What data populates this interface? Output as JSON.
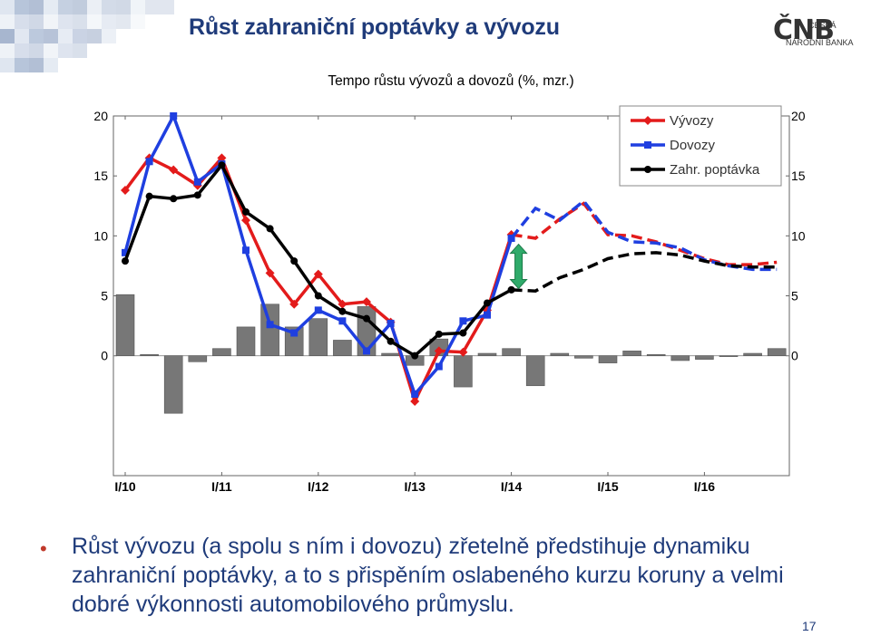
{
  "header": {
    "title": "Růst zahraniční poptávky a vývozu",
    "logo": {
      "brand": "ČNB",
      "line1": "ČESKÁ",
      "line2": "NÁRODNÍ BANKA"
    }
  },
  "colors": {
    "title": "#1f3b7a",
    "vyvozy": "#e31b1b",
    "dovozy": "#1f3fe0",
    "poptavka": "#000000",
    "bars": "#777777",
    "arrow": "#2faa6a",
    "bullet": "#c0392b"
  },
  "chart_data": {
    "type": "line",
    "title": "Tempo růstu vývozů a dovozů (%, mzr.)",
    "ylim": [
      -10,
      20
    ],
    "yticks": [
      0,
      5,
      10,
      15,
      20
    ],
    "x_tick_labels": [
      "I/10",
      "I/11",
      "I/12",
      "I/13",
      "I/14",
      "I/15",
      "I/16"
    ],
    "x_tick_positions": [
      0,
      4,
      8,
      12,
      16,
      20,
      24
    ],
    "legend_position": "top-right",
    "series": [
      {
        "name": "Vývozy",
        "color": "#e31b1b",
        "marker": "diamond",
        "values": [
          13.8,
          16.5,
          15.5,
          14.2,
          16.5,
          11.3,
          6.9,
          4.3,
          6.8,
          4.3,
          4.5,
          2.8,
          -3.8,
          0.4,
          0.3,
          3.8,
          10.1
        ],
        "forecast": [
          10.1,
          9.8,
          11.4,
          12.7,
          10.1,
          10.0,
          9.5,
          8.8,
          8.1,
          7.6,
          7.6,
          7.8
        ],
        "forecast_start": 16
      },
      {
        "name": "Dovozy",
        "color": "#1f3fe0",
        "marker": "square",
        "values": [
          8.6,
          16.2,
          20.0,
          14.5,
          16.0,
          8.8,
          2.6,
          1.9,
          3.8,
          2.9,
          0.4,
          2.7,
          -3.2,
          -0.9,
          2.9,
          3.4,
          9.8
        ],
        "forecast": [
          9.8,
          12.3,
          11.3,
          12.9,
          10.3,
          9.5,
          9.4,
          9.0,
          8.0,
          7.5,
          7.2,
          7.2
        ],
        "forecast_start": 16
      },
      {
        "name": "Zahr. poptávka",
        "color": "#000000",
        "marker": "circle",
        "values": [
          7.9,
          13.3,
          13.1,
          13.4,
          15.9,
          12.0,
          10.6,
          7.9,
          5.0,
          3.7,
          3.1,
          1.2,
          0.0,
          1.8,
          1.9,
          4.4,
          5.5
        ],
        "forecast": [
          5.5,
          5.4,
          6.5,
          7.2,
          8.1,
          8.5,
          8.6,
          8.4,
          7.9,
          7.5,
          7.4,
          7.4
        ],
        "forecast_start": 16
      }
    ],
    "bars": {
      "color": "#777777",
      "values": [
        5.1,
        0.1,
        -4.8,
        -0.5,
        0.6,
        2.4,
        4.3,
        2.4,
        3.1,
        1.3,
        4.1,
        0.2,
        -0.8,
        1.4,
        -2.6,
        0.2,
        0.6,
        -2.5,
        0.2,
        -0.2,
        -0.6,
        0.4,
        0.1,
        -0.4,
        -0.3,
        0.0,
        0.2,
        0.6
      ]
    },
    "arrow": {
      "x": 16.3,
      "from": 5.6,
      "to": 9.3,
      "color": "#2faa6a"
    }
  },
  "bullet": {
    "text": "Růst vývozu (a spolu s ním i dovozu) zřetelně předstihuje dynamiku zahraniční poptávky, a to s přispěním oslabeného kurzu koruny a velmi dobré výkonnosti automobilového průmyslu."
  },
  "page_number": "17"
}
